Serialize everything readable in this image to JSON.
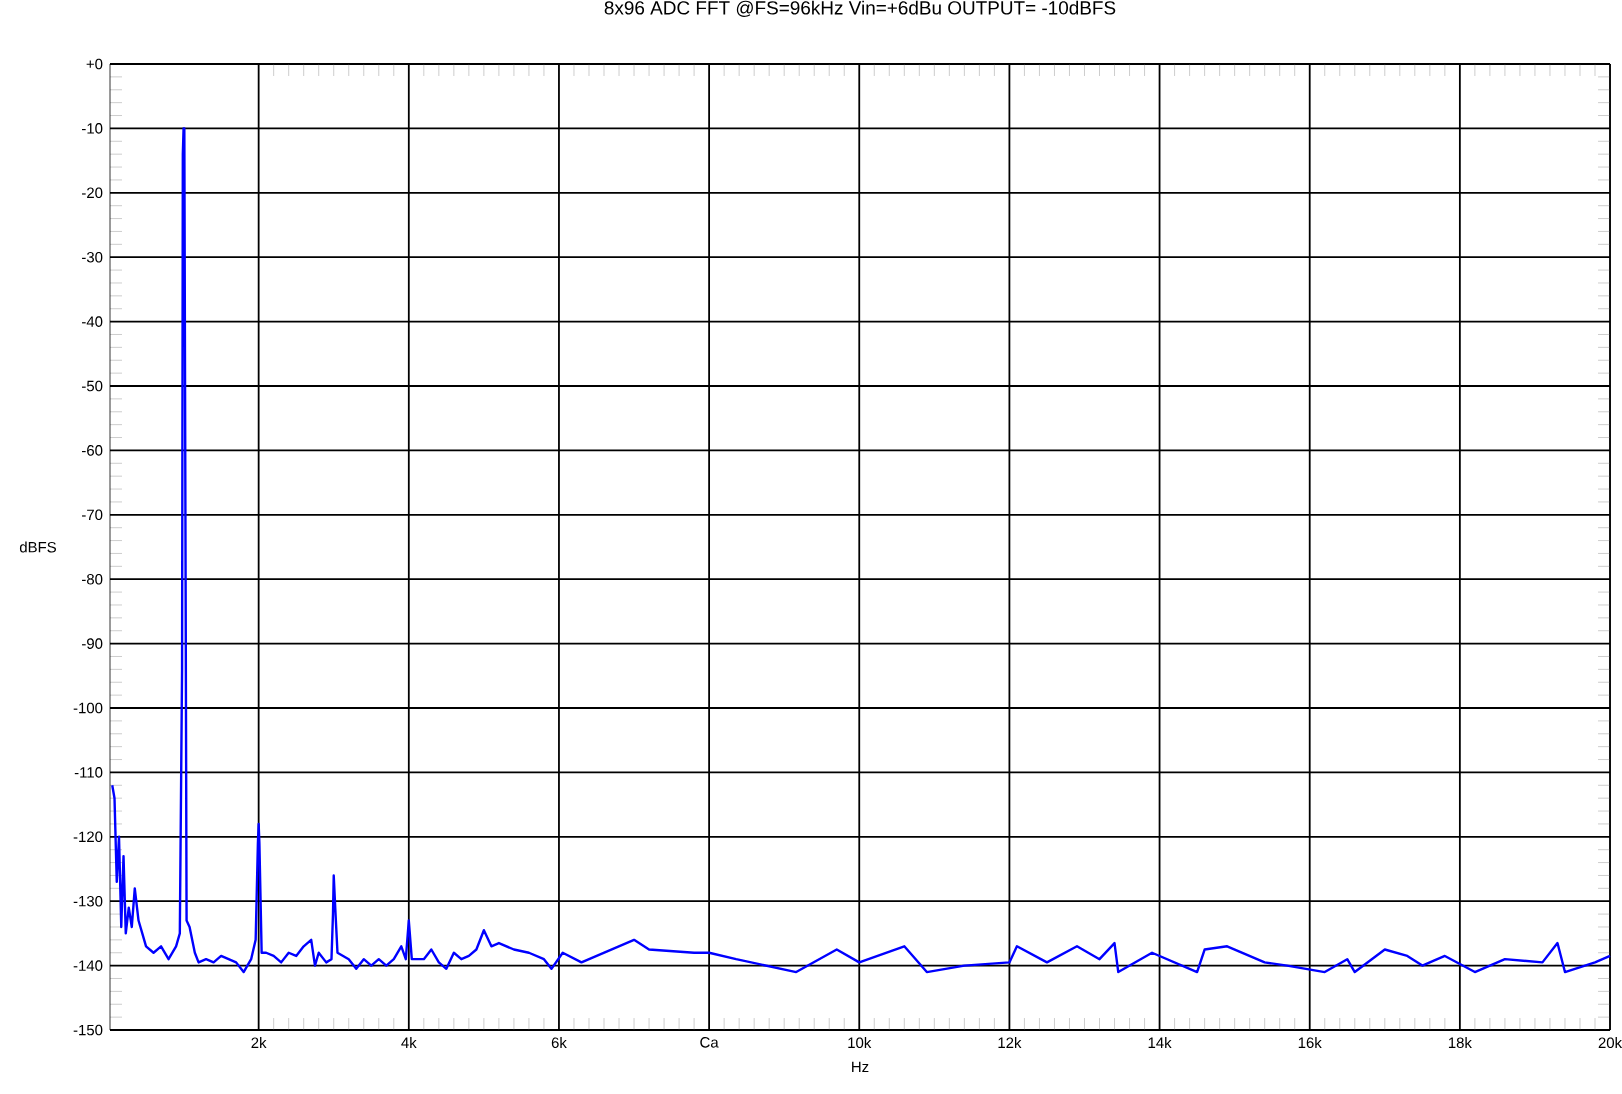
{
  "chart_data": {
    "type": "line",
    "title": "8x96 ADC FFT @FS=96kHz Vin=+6dBu OUTPUT= -10dBFS",
    "xlabel": "Hz",
    "ylabel": "dBFS",
    "xlim": [
      20,
      20000
    ],
    "ylim": [
      -150,
      0
    ],
    "xticks": [
      {
        "value": 2000,
        "label": "2k"
      },
      {
        "value": 4000,
        "label": "4k"
      },
      {
        "value": 6000,
        "label": "6k"
      },
      {
        "value": 8000,
        "label": "Ca"
      },
      {
        "value": 10000,
        "label": "10k"
      },
      {
        "value": 12000,
        "label": "12k"
      },
      {
        "value": 14000,
        "label": "14k"
      },
      {
        "value": 16000,
        "label": "16k"
      },
      {
        "value": 18000,
        "label": "18k"
      },
      {
        "value": 20000,
        "label": "20k"
      }
    ],
    "yticks": [
      {
        "value": 0,
        "label": "+0"
      },
      -10,
      -20,
      -30,
      -40,
      -50,
      -60,
      -70,
      -80,
      -90,
      -100,
      -110,
      -120,
      -130,
      -140,
      -150
    ],
    "grid": true,
    "marker": "none",
    "line_style": "solid",
    "series": [
      {
        "color": "#0000ff",
        "x": [
          50,
          80,
          110,
          140,
          170,
          200,
          230,
          270,
          310,
          350,
          400,
          450,
          500,
          600,
          700,
          800,
          900,
          950,
          980,
          990,
          1000,
          1010,
          1020,
          1040,
          1080,
          1150,
          1200,
          1300,
          1400,
          1500,
          1600,
          1700,
          1800,
          1900,
          1960,
          1990,
          2000,
          2010,
          2040,
          2100,
          2200,
          2300,
          2400,
          2500,
          2600,
          2700,
          2750,
          2800,
          2900,
          2970,
          2990,
          3000,
          3020,
          3050,
          3200,
          3300,
          3400,
          3500,
          3600,
          3700,
          3800,
          3900,
          3960,
          4000,
          4040,
          4200,
          4300,
          4400,
          4500,
          4600,
          4700,
          4800,
          4900,
          5000,
          5100,
          5200,
          5400,
          5600,
          5800,
          5900,
          6050,
          6300,
          7000,
          7200,
          7800,
          8000,
          8360,
          9160,
          9700,
          10000,
          10600,
          10900,
          11400,
          12000,
          12100,
          12500,
          12900,
          13200,
          13400,
          13450,
          13900,
          14500,
          14600,
          14900,
          15400,
          15700,
          16200,
          16500,
          16600,
          17000,
          17300,
          17500,
          17800,
          18200,
          18600,
          19100,
          19300,
          19400,
          19800,
          20000
        ],
        "values": [
          -112,
          -114,
          -127,
          -120,
          -134,
          -123,
          -135,
          -131,
          -134,
          -128,
          -133,
          -135,
          -137,
          -138,
          -137,
          -139,
          -137,
          -135,
          -94,
          -14,
          -10,
          -10,
          -51,
          -133,
          -134,
          -138,
          -139.5,
          -139,
          -139.5,
          -138.5,
          -139,
          -139.5,
          -141,
          -139,
          -136,
          -121,
          -118,
          -121,
          -138,
          -138,
          -138.5,
          -139.5,
          -138,
          -138.5,
          -137,
          -136,
          -140,
          -138,
          -139.5,
          -139,
          -132,
          -126,
          -131,
          -138,
          -139,
          -140.5,
          -139,
          -140,
          -139,
          -140,
          -139,
          -137,
          -139,
          -133,
          -139,
          -139,
          -137.5,
          -139.5,
          -140.5,
          -138,
          -139,
          -138.5,
          -137.5,
          -134.5,
          -137,
          -136.5,
          -137.5,
          -138,
          -139,
          -140.5,
          -138,
          -139.5,
          -136,
          -137.5,
          -138,
          -138,
          -139,
          -141,
          -137.5,
          -139.5,
          -137,
          -141,
          -140,
          -139.5,
          -137,
          -139.5,
          -137,
          -139,
          -136.5,
          -141,
          -138,
          -141,
          -137.5,
          -137,
          -139.5,
          -140,
          -141,
          -139,
          -141,
          -137.5,
          -138.5,
          -140,
          -138.5,
          -141,
          -139,
          -139.5,
          -136.5,
          -141,
          -139.5,
          -138.5
        ]
      }
    ]
  }
}
